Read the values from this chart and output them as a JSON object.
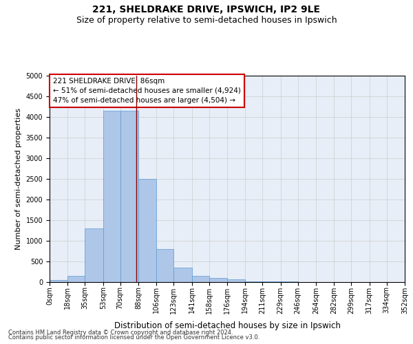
{
  "title": "221, SHELDRAKE DRIVE, IPSWICH, IP2 9LE",
  "subtitle": "Size of property relative to semi-detached houses in Ipswich",
  "xlabel": "Distribution of semi-detached houses by size in Ipswich",
  "ylabel": "Number of semi-detached properties",
  "footer_line1": "Contains HM Land Registry data © Crown copyright and database right 2024.",
  "footer_line2": "Contains public sector information licensed under the Open Government Licence v3.0.",
  "annotation_line1": "221 SHELDRAKE DRIVE: 86sqm",
  "annotation_line2": "← 51% of semi-detached houses are smaller (4,924)",
  "annotation_line3": "47% of semi-detached houses are larger (4,504) →",
  "property_size": 86,
  "bar_left_edges": [
    0,
    18,
    35,
    53,
    70,
    88,
    106,
    123,
    141,
    158,
    176,
    194,
    211,
    229,
    246,
    264,
    282,
    299,
    317,
    334
  ],
  "bar_widths": [
    18,
    17,
    18,
    17,
    18,
    18,
    17,
    18,
    17,
    18,
    18,
    17,
    18,
    17,
    18,
    18,
    17,
    18,
    17,
    18
  ],
  "bar_heights": [
    50,
    150,
    1300,
    4150,
    4150,
    2500,
    800,
    350,
    150,
    100,
    65,
    25,
    15,
    10,
    5,
    3,
    2,
    1,
    1,
    1
  ],
  "bar_color": "#aec6e8",
  "bar_edge_color": "#5b9bd5",
  "vline_x": 86,
  "vline_color": "#8B0000",
  "annotation_box_color": "#ffffff",
  "annotation_box_edge": "#cc0000",
  "tick_labels": [
    "0sqm",
    "18sqm",
    "35sqm",
    "53sqm",
    "70sqm",
    "88sqm",
    "106sqm",
    "123sqm",
    "141sqm",
    "158sqm",
    "176sqm",
    "194sqm",
    "211sqm",
    "229sqm",
    "246sqm",
    "264sqm",
    "282sqm",
    "299sqm",
    "317sqm",
    "334sqm",
    "352sqm"
  ],
  "ylim": [
    0,
    5000
  ],
  "yticks": [
    0,
    500,
    1000,
    1500,
    2000,
    2500,
    3000,
    3500,
    4000,
    4500,
    5000
  ],
  "grid_color": "#cccccc",
  "bg_color": "#e8eef7",
  "title_fontsize": 10,
  "subtitle_fontsize": 9,
  "ylabel_fontsize": 8,
  "xlabel_fontsize": 8.5,
  "tick_fontsize": 7,
  "annotation_fontsize": 7.5,
  "footer_fontsize": 6
}
